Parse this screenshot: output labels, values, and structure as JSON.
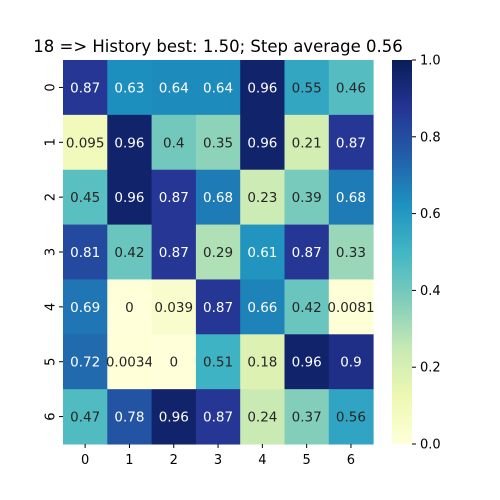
{
  "chart_data": {
    "type": "heatmap",
    "title": "18 => History best: 1.50; Step average 0.56",
    "x_categories": [
      "0",
      "1",
      "2",
      "3",
      "4",
      "5",
      "6"
    ],
    "y_categories": [
      "0",
      "1",
      "2",
      "3",
      "4",
      "5",
      "6"
    ],
    "values": [
      [
        0.87,
        0.63,
        0.64,
        0.64,
        0.96,
        0.55,
        0.46
      ],
      [
        0.095,
        0.96,
        0.4,
        0.35,
        0.96,
        0.21,
        0.87
      ],
      [
        0.45,
        0.96,
        0.87,
        0.68,
        0.23,
        0.39,
        0.68
      ],
      [
        0.81,
        0.42,
        0.87,
        0.29,
        0.61,
        0.87,
        0.33
      ],
      [
        0.69,
        0,
        0.039,
        0.87,
        0.66,
        0.42,
        0.0081
      ],
      [
        0.72,
        0.0034,
        0,
        0.51,
        0.18,
        0.96,
        0.9
      ],
      [
        0.47,
        0.78,
        0.96,
        0.87,
        0.24,
        0.37,
        0.56
      ]
    ],
    "labels": [
      [
        "0.87",
        "0.63",
        "0.64",
        "0.64",
        "0.96",
        "0.55",
        "0.46"
      ],
      [
        "0.095",
        "0.96",
        "0.4",
        "0.35",
        "0.96",
        "0.21",
        "0.87"
      ],
      [
        "0.45",
        "0.96",
        "0.87",
        "0.68",
        "0.23",
        "0.39",
        "0.68"
      ],
      [
        "0.81",
        "0.42",
        "0.87",
        "0.29",
        "0.61",
        "0.87",
        "0.33"
      ],
      [
        "0.69",
        "0",
        "0.039",
        "0.87",
        "0.66",
        "0.42",
        "0.0081"
      ],
      [
        "0.72",
        "0.0034",
        "0",
        "0.51",
        "0.18",
        "0.96",
        "0.9"
      ],
      [
        "0.47",
        "0.78",
        "0.96",
        "0.87",
        "0.24",
        "0.37",
        "0.56"
      ]
    ],
    "colormap": "YlGnBu",
    "vmin": 0,
    "vmax": 1,
    "colorbar_ticks": [
      "0.0",
      "0.2",
      "0.4",
      "0.6",
      "0.8",
      "1.0"
    ],
    "colorbar_values": [
      0,
      0.2,
      0.4,
      0.6,
      0.8,
      1.0
    ]
  }
}
